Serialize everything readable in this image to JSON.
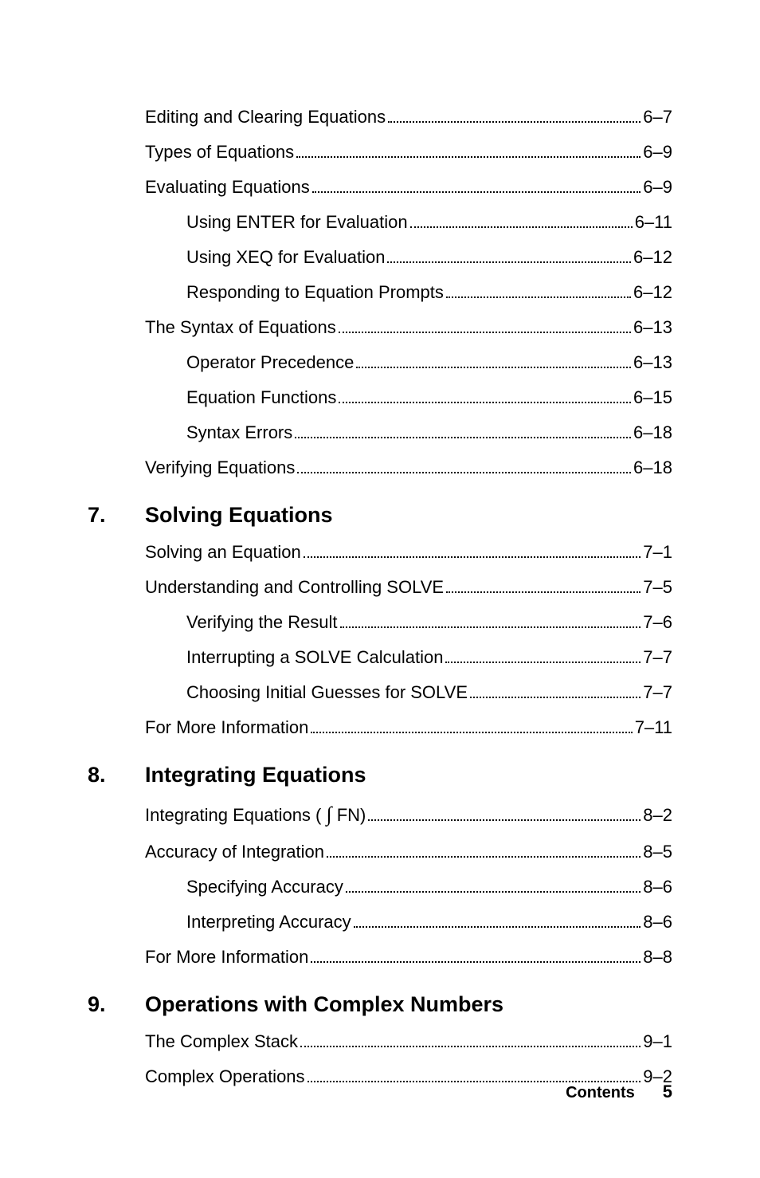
{
  "sections": [
    {
      "number": null,
      "title": null,
      "entries": [
        {
          "level": 0,
          "label": "Editing and Clearing Equations",
          "page": "6–7"
        },
        {
          "level": 0,
          "label": "Types of Equations",
          "page": "6–9"
        },
        {
          "level": 0,
          "label": "Evaluating Equations",
          "page": "6–9"
        },
        {
          "level": 1,
          "label": "Using ENTER for Evaluation",
          "page": "6–11"
        },
        {
          "level": 1,
          "label": "Using XEQ for Evaluation",
          "page": "6–12"
        },
        {
          "level": 1,
          "label": "Responding to Equation Prompts",
          "page": "6–12"
        },
        {
          "level": 0,
          "label": "The Syntax of Equations",
          "page": "6–13"
        },
        {
          "level": 1,
          "label": "Operator Precedence",
          "page": "6–13"
        },
        {
          "level": 1,
          "label": "Equation Functions",
          "page": "6–15"
        },
        {
          "level": 1,
          "label": "Syntax Errors",
          "page": "6–18"
        },
        {
          "level": 0,
          "label": "Verifying Equations",
          "page": "6–18"
        }
      ]
    },
    {
      "number": "7.",
      "title": "Solving Equations",
      "entries": [
        {
          "level": 0,
          "label": "Solving an Equation",
          "page": "7–1"
        },
        {
          "level": 0,
          "label": "Understanding and Controlling SOLVE",
          "page": "7–5"
        },
        {
          "level": 1,
          "label": "Verifying the Result",
          "page": "7–6"
        },
        {
          "level": 1,
          "label": "Interrupting a SOLVE Calculation",
          "page": "7–7"
        },
        {
          "level": 1,
          "label": "Choosing Initial Guesses for SOLVE",
          "page": "7–7"
        },
        {
          "level": 0,
          "label": "For More Information",
          "page": "7–11"
        }
      ]
    },
    {
      "number": "8.",
      "title": "Integrating Equations",
      "entries": [
        {
          "level": 0,
          "label": "Integrating Equations ( ∫ FN)",
          "page": "8–2",
          "hasIntegral": true
        },
        {
          "level": 0,
          "label": "Accuracy of Integration",
          "page": "8–5"
        },
        {
          "level": 1,
          "label": "Specifying Accuracy",
          "page": "8–6"
        },
        {
          "level": 1,
          "label": "Interpreting Accuracy",
          "page": "8–6"
        },
        {
          "level": 0,
          "label": "For More Information",
          "page": "8–8"
        }
      ]
    },
    {
      "number": "9.",
      "title": "Operations with Complex Numbers",
      "entries": [
        {
          "level": 0,
          "label": "The Complex Stack",
          "page": "9–1"
        },
        {
          "level": 0,
          "label": "Complex Operations",
          "page": "9–2"
        }
      ]
    }
  ],
  "footer": {
    "label": "Contents",
    "page": "5"
  }
}
